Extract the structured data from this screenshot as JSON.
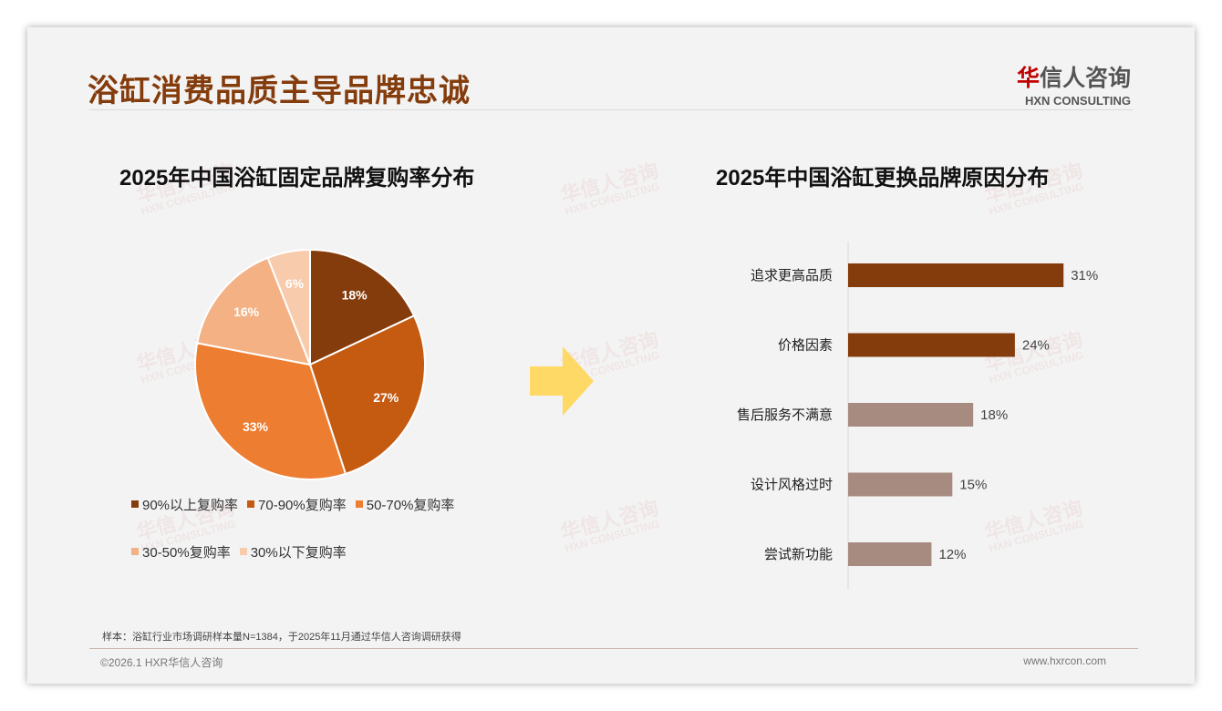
{
  "header": {
    "title": "浴缸消费品质主导品牌忠诚",
    "logo_cn_red": "华",
    "logo_cn": "信人咨询",
    "logo_en": "HXN CONSULTING"
  },
  "watermark": "华信人咨询",
  "chart_data": [
    {
      "type": "pie",
      "title": "2025年中国浴缸固定品牌复购率分布",
      "labels": [
        "90%以上复购率",
        "70-90%复购率",
        "50-70%复购率",
        "30-50%复购率",
        "30%以下复购率"
      ],
      "values": [
        18,
        27,
        33,
        16,
        6
      ],
      "data_labels": [
        "18%",
        "27%",
        "33%",
        "16%",
        "6%"
      ],
      "colors": [
        "#843c0c",
        "#c55a11",
        "#ed7d31",
        "#f4b183",
        "#f8cbad"
      ],
      "legend": "bottom"
    },
    {
      "type": "bar",
      "orientation": "horizontal",
      "title": "2025年中国浴缸更换品牌原因分布",
      "categories": [
        "追求更高品质",
        "价格因素",
        "售后服务不满意",
        "设计风格过时",
        "尝试新功能"
      ],
      "values": [
        31,
        24,
        18,
        15,
        12
      ],
      "data_labels": [
        "31%",
        "24%",
        "18%",
        "15%",
        "12%"
      ],
      "colors": [
        "#843c0c",
        "#843c0c",
        "#a88b80",
        "#a88b80",
        "#a88b80"
      ]
    }
  ],
  "footer": {
    "note": "样本：浴缸行业市场调研样本量N=1384，于2025年11月通过华信人咨询调研获得",
    "copyright": "©2026.1 HXR华信人咨询",
    "url": "www.hxrcon.com"
  }
}
